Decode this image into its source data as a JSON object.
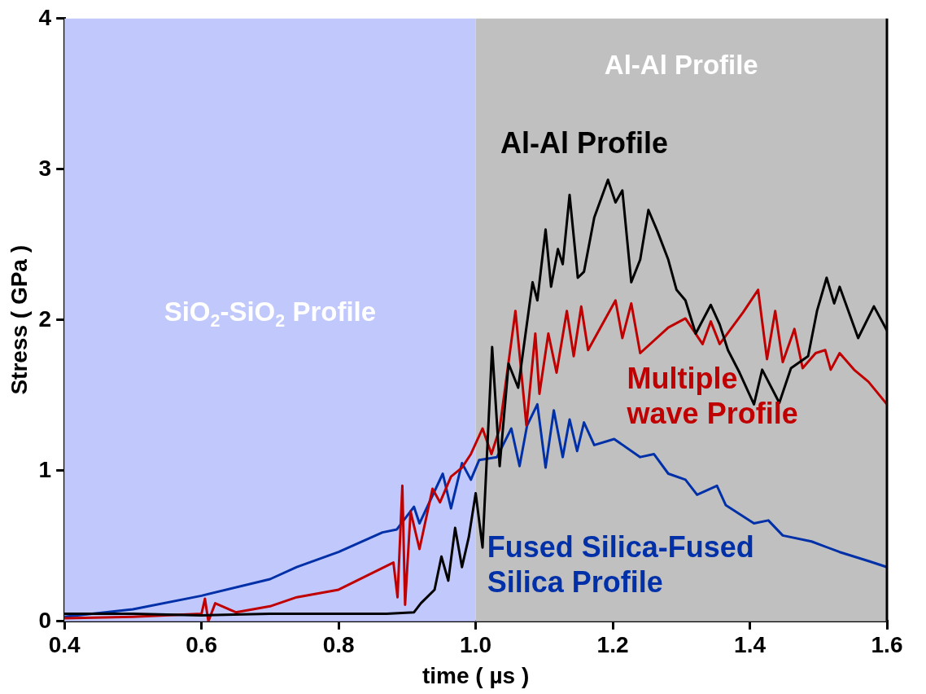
{
  "chart_data": {
    "type": "line",
    "xlabel": "time ( µs )",
    "ylabel": "Stress ( GPa )",
    "xlim": [
      0.4,
      1.6
    ],
    "xticks": [
      0.4,
      0.6,
      0.8,
      {
        "value": 1,
        "label": "1.0"
      },
      1.2,
      1.4,
      1.6
    ],
    "ylim": [
      0,
      4
    ],
    "yticks": [
      0,
      1,
      2,
      3,
      4
    ],
    "grid": false,
    "legend": false,
    "marker": "none",
    "line_style": "solid",
    "bands": [
      {
        "axis": "x",
        "from": 0.4,
        "to": 1.0,
        "label": "SiO$_{2}$-SiO$_{2}$ Profile",
        "color": "#c0c8fc"
      },
      {
        "axis": "x",
        "from": 1.0,
        "to": 1.6,
        "label": "Al-Al Profile",
        "color": "#c0c0c0"
      }
    ],
    "series": [
      {
        "name": "Al-Al Profile",
        "color": "#000000",
        "x": [
          0.4,
          0.5,
          0.6,
          0.7,
          0.8,
          0.87,
          0.91,
          0.92,
          0.94,
          0.95,
          0.96,
          0.97,
          0.98,
          0.99,
          1.0,
          1.01,
          1.024,
          1.035,
          1.048,
          1.062,
          1.083,
          1.09,
          1.102,
          1.11,
          1.12,
          1.127,
          1.137,
          1.149,
          1.158,
          1.173,
          1.193,
          1.204,
          1.214,
          1.227,
          1.24,
          1.252,
          1.265,
          1.281,
          1.293,
          1.306,
          1.321,
          1.343,
          1.356,
          1.368,
          1.385,
          1.406,
          1.418,
          1.443,
          1.46,
          1.485,
          1.498,
          1.512,
          1.523,
          1.531,
          1.558,
          1.581,
          1.6
        ],
        "values": [
          0.05,
          0.05,
          0.04,
          0.05,
          0.05,
          0.05,
          0.06,
          0.12,
          0.21,
          0.43,
          0.27,
          0.62,
          0.36,
          0.56,
          0.85,
          0.49,
          1.82,
          1.03,
          1.71,
          1.55,
          2.25,
          2.13,
          2.6,
          2.22,
          2.47,
          2.37,
          2.83,
          2.28,
          2.32,
          2.68,
          2.93,
          2.78,
          2.86,
          2.25,
          2.4,
          2.73,
          2.59,
          2.4,
          2.2,
          2.13,
          1.91,
          2.1,
          1.97,
          1.8,
          1.65,
          1.44,
          1.67,
          1.45,
          1.68,
          1.76,
          2.06,
          2.28,
          2.11,
          2.22,
          1.88,
          2.09,
          1.93
        ]
      },
      {
        "name": "Multiple wave Profile",
        "color": "#c00000",
        "x": [
          0.4,
          0.5,
          0.6,
          0.605,
          0.61,
          0.62,
          0.65,
          0.7,
          0.739,
          0.8,
          0.88,
          0.886,
          0.893,
          0.897,
          0.905,
          0.918,
          0.937,
          0.948,
          0.964,
          0.98,
          0.993,
          1.01,
          1.023,
          1.035,
          1.058,
          1.074,
          1.087,
          1.093,
          1.106,
          1.118,
          1.133,
          1.143,
          1.154,
          1.164,
          1.204,
          1.214,
          1.227,
          1.24,
          1.281,
          1.306,
          1.331,
          1.343,
          1.356,
          1.39,
          1.412,
          1.425,
          1.437,
          1.448,
          1.465,
          1.477,
          1.496,
          1.51,
          1.518,
          1.531,
          1.552,
          1.573,
          1.6
        ],
        "values": [
          0.02,
          0.03,
          0.05,
          0.15,
          0.0,
          0.12,
          0.06,
          0.1,
          0.16,
          0.21,
          0.39,
          0.16,
          0.9,
          0.11,
          0.73,
          0.48,
          0.88,
          0.79,
          0.96,
          1.02,
          1.11,
          1.28,
          1.11,
          1.28,
          2.06,
          1.3,
          1.91,
          1.51,
          1.91,
          1.65,
          2.06,
          1.76,
          2.09,
          1.8,
          2.13,
          1.88,
          2.11,
          1.78,
          1.95,
          2.01,
          1.84,
          1.99,
          1.84,
          2.05,
          2.2,
          1.74,
          2.06,
          1.72,
          1.94,
          1.68,
          1.78,
          1.8,
          1.67,
          1.78,
          1.67,
          1.59,
          1.44
        ]
      },
      {
        "name": "Fused Silica-Fused Silica Profile",
        "color": "#0030a8",
        "x": [
          0.4,
          0.5,
          0.6,
          0.7,
          0.739,
          0.8,
          0.864,
          0.885,
          0.91,
          0.918,
          0.952,
          0.964,
          0.98,
          0.993,
          1.005,
          1.031,
          1.052,
          1.064,
          1.075,
          1.09,
          1.102,
          1.114,
          1.127,
          1.137,
          1.148,
          1.158,
          1.173,
          1.202,
          1.24,
          1.26,
          1.281,
          1.306,
          1.323,
          1.352,
          1.365,
          1.406,
          1.427,
          1.448,
          1.49,
          1.531,
          1.573,
          1.6
        ],
        "values": [
          0.03,
          0.08,
          0.17,
          0.28,
          0.36,
          0.46,
          0.59,
          0.61,
          0.76,
          0.65,
          0.98,
          0.75,
          1.05,
          0.94,
          1.07,
          1.09,
          1.28,
          1.03,
          1.3,
          1.44,
          1.02,
          1.4,
          1.09,
          1.34,
          1.13,
          1.32,
          1.17,
          1.21,
          1.09,
          1.11,
          0.98,
          0.94,
          0.84,
          0.9,
          0.77,
          0.65,
          0.67,
          0.57,
          0.53,
          0.46,
          0.4,
          0.36
        ]
      }
    ]
  }
}
